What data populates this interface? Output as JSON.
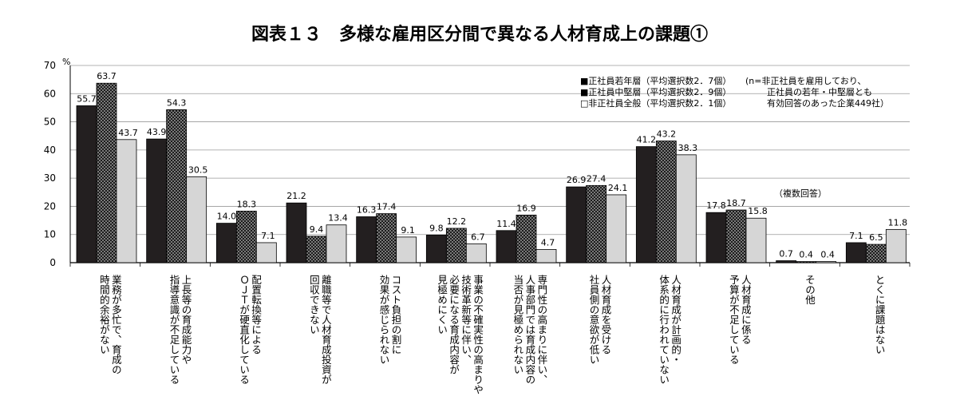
{
  "chart_data": {
    "type": "bar",
    "title": "図表１３　多様な雇用区分間で異なる人材育成上の課題①",
    "ylabel": "",
    "y_unit": "%",
    "ylim": [
      0,
      70
    ],
    "yticks": [
      "0",
      "10",
      "20",
      "30",
      "40",
      "50",
      "60",
      "70"
    ],
    "grid": true,
    "legend_position": "top-right",
    "categories": [
      [
        "業務が多忙で、育成の",
        "時間的余裕がない"
      ],
      [
        "上長等の育成能力や",
        "指導意識が不足している"
      ],
      [
        "配置転換等による",
        "ＯＪＴが硬直化している"
      ],
      [
        "離職等で人材育成投資が",
        "回収できない"
      ],
      [
        "コスト負担の割に",
        "効果が感じられない"
      ],
      [
        "事業の不確実性の高まりや",
        "技術革新等に伴い、",
        "必要になる育成内容が",
        "見極めにくい"
      ],
      [
        "専門性の高まりに伴い、",
        "人事部門では育成内容の",
        "当否が見極められない"
      ],
      [
        "人材育成を受ける",
        "社員側の意欲が低い"
      ],
      [
        "人材育成が計画的・",
        "体系的に行われていない"
      ],
      [
        "人材育成に係る",
        "予算が不足している"
      ],
      [
        "その他"
      ],
      [
        "とくに課題はない"
      ]
    ],
    "series": [
      {
        "name": "■正社員若年層（平均選択数2．7個）",
        "color": "#231f20",
        "values": [
          55.7,
          43.9,
          14.0,
          21.2,
          16.3,
          9.8,
          11.4,
          26.9,
          41.2,
          17.8,
          0.7,
          7.1
        ]
      },
      {
        "name": "■正社員中堅層（平均選択数2．9個）",
        "color": "#3a3a3a",
        "values": [
          63.7,
          54.3,
          18.3,
          9.4,
          17.4,
          12.2,
          16.9,
          27.4,
          43.2,
          18.7,
          0.4,
          6.5
        ]
      },
      {
        "name": "□非正社員全般（平均選択数2．1個）",
        "color": "#d6d6d6",
        "values": [
          43.7,
          30.5,
          7.1,
          13.4,
          9.1,
          6.7,
          4.7,
          24.1,
          38.3,
          15.8,
          0.4,
          11.8
        ]
      }
    ],
    "value_labels": [
      [
        "55.7",
        "43.9",
        "14.0",
        "21.2",
        "16.3",
        "9.8",
        "11.4",
        "26.9",
        "41.2",
        "17.8",
        "0.7",
        "7.1"
      ],
      [
        "63.7",
        "54.3",
        "18.3",
        "9.4",
        "17.4",
        "12.2",
        "16.9",
        "27.4",
        "43.2",
        "18.7",
        "0.4",
        "6.5"
      ],
      [
        "43.7",
        "30.5",
        "7.1",
        "13.4",
        "9.1",
        "6.7",
        "4.7",
        "24.1",
        "38.3",
        "15.8",
        "0.4",
        "11.8"
      ]
    ],
    "annotations": {
      "note": [
        "(n=非正社員を雇用しており、",
        "正社員の若年・中堅層とも",
        "有効回答のあった企業449社）"
      ],
      "multiple_answer": "（複数回答）"
    }
  }
}
